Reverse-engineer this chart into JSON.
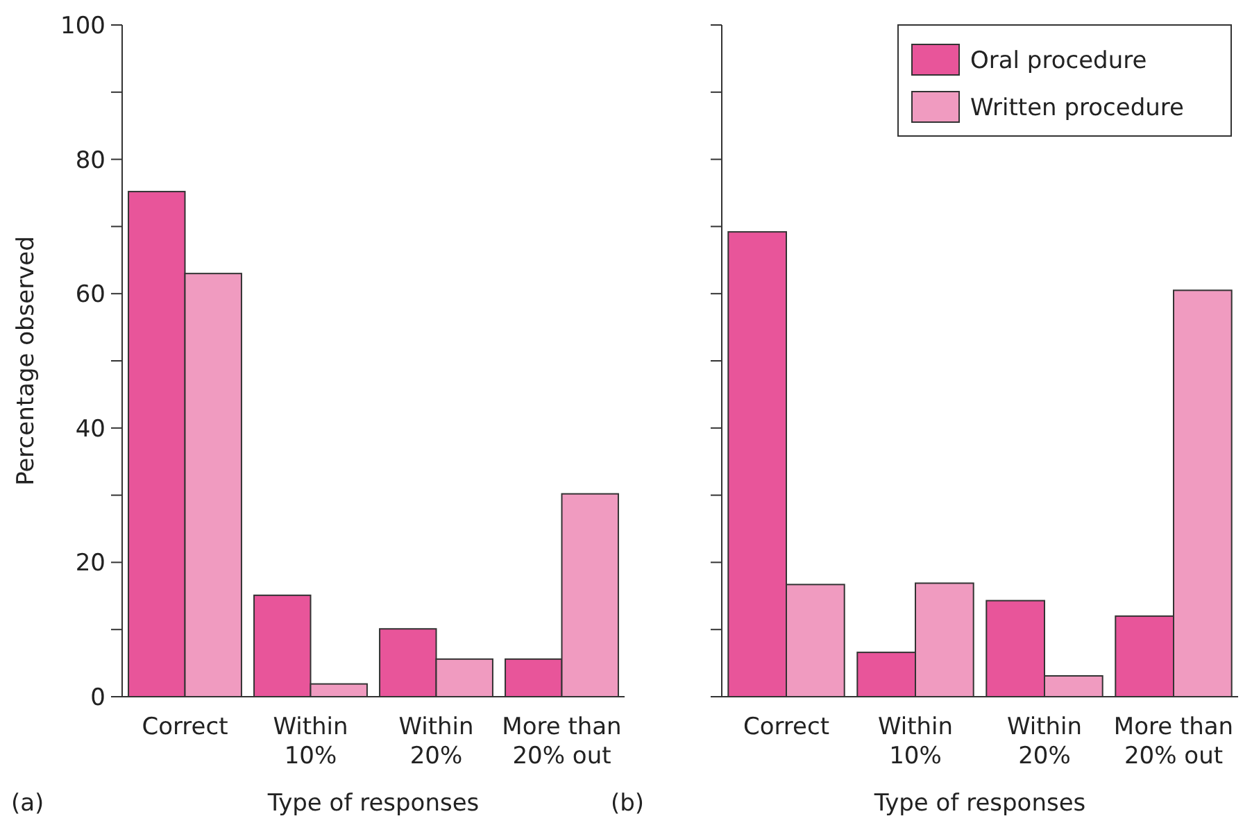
{
  "chart_data": [
    {
      "type": "bar",
      "ylabel": "Percentage observed",
      "xlabel": "Type of responses",
      "categories": [
        "Correct",
        "Within\n10%",
        "Within\n20%",
        "More than\n20% out"
      ],
      "series": [
        {
          "color": "#e8559a",
          "values": [
            75.2,
            15.1,
            10.1,
            5.6
          ]
        },
        {
          "color": "#f09bc0",
          "values": [
            63,
            1.9,
            5.6,
            30.2
          ]
        }
      ],
      "ylim": [
        0,
        100
      ],
      "yticks": [
        0,
        {
          "value": 10,
          "label": null
        },
        20,
        {
          "value": 30,
          "label": null
        },
        40,
        {
          "value": 50,
          "label": null
        },
        60,
        {
          "value": 70,
          "label": null
        },
        80,
        {
          "value": 90,
          "label": null
        },
        100
      ],
      "annotations": [
        "(a)"
      ],
      "legend": false
    },
    {
      "type": "bar",
      "xlabel": "Type of responses",
      "categories": [
        "Correct",
        "Within\n10%",
        "Within\n20%",
        "More than\n20% out"
      ],
      "series": [
        {
          "name": "Oral procedure",
          "color": "#e8559a",
          "values": [
            69.2,
            6.6,
            14.3,
            12
          ]
        },
        {
          "name": "Written procedure",
          "color": "#f09bc0",
          "values": [
            16.7,
            16.9,
            3.1,
            60.5
          ]
        }
      ],
      "ylim": [
        0,
        100
      ],
      "yticks": [
        0,
        {
          "value": 10,
          "label": null
        },
        20,
        {
          "value": 30,
          "label": null
        },
        40,
        {
          "value": 50,
          "label": null
        },
        60,
        {
          "value": 70,
          "label": null
        },
        80,
        {
          "value": 90,
          "label": null
        },
        100
      ],
      "tick_labels": "x",
      "annotations": [
        "(b)"
      ],
      "legend": "top right"
    }
  ]
}
